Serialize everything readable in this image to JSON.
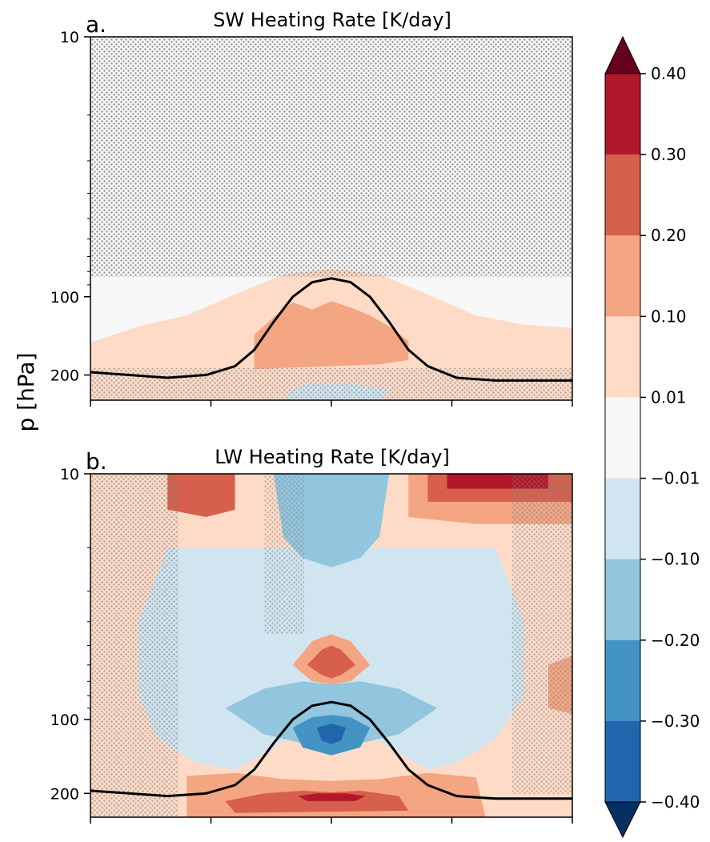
{
  "chart_data": [
    {
      "type": "heatmap",
      "panel_label": "a.",
      "title": "SW Heating Rate [K/day]",
      "ylabel": "p [hPa]",
      "yscale": "log",
      "yaxis_inverted": true,
      "ylim": [
        250,
        10
      ],
      "yticks": [
        {
          "value": 10,
          "label": "10"
        },
        {
          "value": 100,
          "label": "100"
        },
        {
          "value": 200,
          "label": "200"
        }
      ],
      "xticks_count": 5,
      "xtick_labels_shown": false,
      "stippling": true,
      "tropopause_line": [
        [
          0,
          195
        ],
        [
          0.08,
          200
        ],
        [
          0.16,
          205
        ],
        [
          0.24,
          200
        ],
        [
          0.3,
          185
        ],
        [
          0.34,
          160
        ],
        [
          0.38,
          125
        ],
        [
          0.42,
          100
        ],
        [
          0.46,
          88
        ],
        [
          0.5,
          85
        ],
        [
          0.54,
          88
        ],
        [
          0.58,
          100
        ],
        [
          0.62,
          125
        ],
        [
          0.66,
          160
        ],
        [
          0.7,
          185
        ],
        [
          0.76,
          205
        ],
        [
          0.84,
          210
        ],
        [
          0.92,
          210
        ],
        [
          1.0,
          210
        ]
      ],
      "shaded_regions": [
        {
          "level": "0.01 to 0.10",
          "polygon": [
            [
              0,
              250
            ],
            [
              0,
              150
            ],
            [
              0.1,
              130
            ],
            [
              0.2,
              118
            ],
            [
              0.3,
              98
            ],
            [
              0.4,
              82
            ],
            [
              0.5,
              78
            ],
            [
              0.6,
              82
            ],
            [
              0.7,
              98
            ],
            [
              0.8,
              118
            ],
            [
              0.9,
              128
            ],
            [
              1.0,
              132
            ],
            [
              1.0,
              250
            ]
          ]
        },
        {
          "level": "0.10 to 0.20",
          "polygon": [
            [
              0.34,
              190
            ],
            [
              0.34,
              140
            ],
            [
              0.38,
              120
            ],
            [
              0.42,
              105
            ],
            [
              0.46,
              112
            ],
            [
              0.5,
              104
            ],
            [
              0.54,
              110
            ],
            [
              0.58,
              118
            ],
            [
              0.62,
              130
            ],
            [
              0.66,
              148
            ],
            [
              0.66,
              175
            ],
            [
              0.6,
              182
            ],
            [
              0.5,
              185
            ],
            [
              0.4,
              188
            ]
          ]
        },
        {
          "level": "-0.01 to -0.10",
          "polygon": [
            [
              0.4,
              250
            ],
            [
              0.42,
              225
            ],
            [
              0.46,
              215
            ],
            [
              0.5,
              218
            ],
            [
              0.54,
              215
            ],
            [
              0.58,
              222
            ],
            [
              0.62,
              228
            ],
            [
              0.6,
              250
            ]
          ]
        },
        {
          "level": "-0.01 to 0.01",
          "polygon": [
            [
              0.48,
              55
            ],
            [
              0.5,
              30
            ],
            [
              0.52,
              40
            ],
            [
              0.54,
              55
            ],
            [
              0.52,
              65
            ],
            [
              0.5,
              70
            ]
          ]
        }
      ]
    },
    {
      "type": "heatmap",
      "panel_label": "b.",
      "title": "LW Heating Rate [K/day]",
      "yscale": "log",
      "yaxis_inverted": true,
      "ylim": [
        250,
        10
      ],
      "yticks": [
        {
          "value": 10,
          "label": "10"
        },
        {
          "value": 100,
          "label": "100"
        },
        {
          "value": 200,
          "label": "200"
        }
      ],
      "xticks_count": 5,
      "xtick_labels_shown": false,
      "stippling": true,
      "tropopause_line": [
        [
          0,
          195
        ],
        [
          0.08,
          200
        ],
        [
          0.16,
          205
        ],
        [
          0.24,
          200
        ],
        [
          0.3,
          185
        ],
        [
          0.34,
          160
        ],
        [
          0.38,
          125
        ],
        [
          0.42,
          100
        ],
        [
          0.46,
          88
        ],
        [
          0.5,
          85
        ],
        [
          0.54,
          88
        ],
        [
          0.58,
          100
        ],
        [
          0.62,
          125
        ],
        [
          0.66,
          160
        ],
        [
          0.7,
          185
        ],
        [
          0.76,
          205
        ],
        [
          0.84,
          210
        ],
        [
          0.92,
          210
        ],
        [
          1.0,
          210
        ]
      ],
      "shaded_regions": [
        {
          "level": "0.01 to 0.10",
          "polygon": [
            [
              0,
              10
            ],
            [
              1.0,
              10
            ],
            [
              1.0,
              250
            ],
            [
              0,
              250
            ]
          ]
        },
        {
          "level": "-0.01 to -0.10",
          "polygon": [
            [
              0.16,
              20
            ],
            [
              0.84,
              20
            ],
            [
              0.9,
              40
            ],
            [
              0.9,
              80
            ],
            [
              0.84,
              120
            ],
            [
              0.76,
              150
            ],
            [
              0.7,
              160
            ],
            [
              0.62,
              130
            ],
            [
              0.56,
              110
            ],
            [
              0.5,
              105
            ],
            [
              0.44,
              110
            ],
            [
              0.38,
              130
            ],
            [
              0.3,
              160
            ],
            [
              0.22,
              150
            ],
            [
              0.14,
              120
            ],
            [
              0.1,
              80
            ],
            [
              0.1,
              40
            ]
          ]
        },
        {
          "level": "-0.10 to -0.20",
          "polygon": [
            [
              0.28,
              90
            ],
            [
              0.36,
              75
            ],
            [
              0.44,
              70
            ],
            [
              0.5,
              72
            ],
            [
              0.56,
              70
            ],
            [
              0.64,
              75
            ],
            [
              0.72,
              90
            ],
            [
              0.64,
              115
            ],
            [
              0.56,
              125
            ],
            [
              0.5,
              122
            ],
            [
              0.44,
              125
            ],
            [
              0.36,
              115
            ]
          ]
        },
        {
          "level": "-0.20 to -0.30",
          "polygon": [
            [
              0.42,
              108
            ],
            [
              0.46,
              98
            ],
            [
              0.5,
              96
            ],
            [
              0.54,
              98
            ],
            [
              0.58,
              108
            ],
            [
              0.56,
              130
            ],
            [
              0.5,
              140
            ],
            [
              0.44,
              130
            ]
          ]
        },
        {
          "level": "-0.30 to -0.40",
          "polygon": [
            [
              0.47,
              108
            ],
            [
              0.5,
              104
            ],
            [
              0.53,
              108
            ],
            [
              0.52,
              122
            ],
            [
              0.5,
              126
            ],
            [
              0.48,
              122
            ]
          ]
        },
        {
          "level": "-0.10 to -0.20",
          "polygon": [
            [
              0.38,
              10
            ],
            [
              0.62,
              10
            ],
            [
              0.6,
              18
            ],
            [
              0.56,
              22
            ],
            [
              0.5,
              24
            ],
            [
              0.44,
              22
            ],
            [
              0.4,
              18
            ]
          ]
        },
        {
          "level": "0.10 to 0.20",
          "polygon": [
            [
              0.42,
              60
            ],
            [
              0.46,
              48
            ],
            [
              0.5,
              45
            ],
            [
              0.54,
              48
            ],
            [
              0.58,
              60
            ],
            [
              0.54,
              70
            ],
            [
              0.5,
              72
            ],
            [
              0.46,
              70
            ]
          ]
        },
        {
          "level": "0.20 to 0.30",
          "polygon": [
            [
              0.45,
              60
            ],
            [
              0.48,
              52
            ],
            [
              0.5,
              50
            ],
            [
              0.52,
              52
            ],
            [
              0.55,
              60
            ],
            [
              0.52,
              66
            ],
            [
              0.5,
              68
            ],
            [
              0.48,
              66
            ]
          ]
        },
        {
          "level": "0.10 to 0.20",
          "polygon": [
            [
              0.66,
              10
            ],
            [
              1.0,
              10
            ],
            [
              1.0,
              16
            ],
            [
              0.8,
              16
            ],
            [
              0.66,
              15
            ]
          ]
        },
        {
          "level": "0.20 to 0.30",
          "polygon": [
            [
              0.7,
              10
            ],
            [
              1.0,
              10
            ],
            [
              1.0,
              13
            ],
            [
              0.8,
              13
            ],
            [
              0.7,
              13
            ]
          ]
        },
        {
          "level": "0.30 to 0.40",
          "polygon": [
            [
              0.74,
              10
            ],
            [
              0.95,
              10
            ],
            [
              0.95,
              11.5
            ],
            [
              0.74,
              11.5
            ]
          ]
        },
        {
          "level": "0.20 to 0.30",
          "polygon": [
            [
              0.16,
              10
            ],
            [
              0.3,
              10
            ],
            [
              0.3,
              14
            ],
            [
              0.24,
              15
            ],
            [
              0.16,
              14
            ]
          ]
        },
        {
          "level": "0.10 to 0.20",
          "polygon": [
            [
              0.2,
              170
            ],
            [
              0.3,
              165
            ],
            [
              0.4,
              175
            ],
            [
              0.5,
              178
            ],
            [
              0.6,
              175
            ],
            [
              0.7,
              165
            ],
            [
              0.8,
              172
            ],
            [
              0.82,
              250
            ],
            [
              0.2,
              250
            ]
          ]
        },
        {
          "level": "0.20 to 0.30",
          "polygon": [
            [
              0.28,
              215
            ],
            [
              0.36,
              200
            ],
            [
              0.44,
              195
            ],
            [
              0.5,
              198
            ],
            [
              0.56,
              195
            ],
            [
              0.64,
              205
            ],
            [
              0.66,
              235
            ],
            [
              0.3,
              240
            ]
          ]
        },
        {
          "level": "0.30 to 0.40",
          "polygon": [
            [
              0.43,
              205
            ],
            [
              0.47,
              200
            ],
            [
              0.53,
              200
            ],
            [
              0.57,
              205
            ],
            [
              0.55,
              215
            ],
            [
              0.45,
              215
            ]
          ]
        },
        {
          "level": "0.10 to 0.20",
          "polygon": [
            [
              0.95,
              60
            ],
            [
              1.0,
              55
            ],
            [
              1.0,
              95
            ],
            [
              0.95,
              90
            ]
          ]
        }
      ]
    }
  ],
  "colorbar": {
    "ticks": [
      "0.40",
      "0.30",
      "0.20",
      "0.10",
      "0.01",
      "−0.01",
      "−0.10",
      "−0.20",
      "−0.30",
      "−0.40"
    ],
    "levels": [
      {
        "range": "0.30 to 0.40",
        "color": "#b2182b"
      },
      {
        "range": "0.20 to 0.30",
        "color": "#d6604d"
      },
      {
        "range": "0.10 to 0.20",
        "color": "#f4a582"
      },
      {
        "range": "0.01 to 0.10",
        "color": "#fddbc7"
      },
      {
        "range": "-0.01 to 0.01",
        "color": "#f7f7f7"
      },
      {
        "range": "-0.01 to -0.10",
        "color": "#d1e5f0"
      },
      {
        "range": "-0.10 to -0.20",
        "color": "#92c5de"
      },
      {
        "range": "-0.20 to -0.30",
        "color": "#4393c3"
      },
      {
        "range": "-0.30 to -0.40",
        "color": "#2166ac"
      }
    ],
    "extend_max_color": "#67001f",
    "extend_min_color": "#053061"
  },
  "colors": {
    "stipple": "#808080",
    "tropopause_line": "#000000",
    "level_map": {
      "0.30 to 0.40": "#b2182b",
      "0.20 to 0.30": "#d6604d",
      "0.10 to 0.20": "#f4a582",
      "0.01 to 0.10": "#fddbc7",
      "-0.01 to 0.01": "#f7f7f7",
      "-0.01 to -0.10": "#d1e5f0",
      "-0.10 to -0.20": "#92c5de",
      "-0.20 to -0.30": "#4393c3",
      "-0.30 to -0.40": "#2166ac"
    }
  }
}
